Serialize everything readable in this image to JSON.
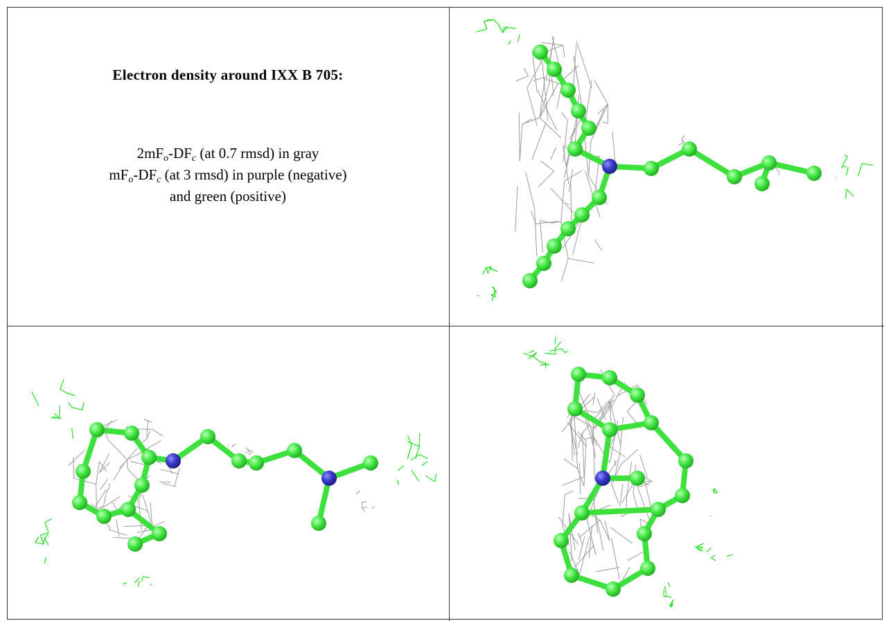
{
  "caption": {
    "title": "Electron density around IXX B 705:",
    "lines": [
      [
        "2mF",
        "o",
        "-DF",
        "c",
        " (at 0.7 rmsd) in gray"
      ],
      [
        "mF",
        "o",
        "-DF",
        "c",
        " (at 3 rmsd) in purple (negative)"
      ],
      [
        "and green (positive)"
      ]
    ]
  }
}
